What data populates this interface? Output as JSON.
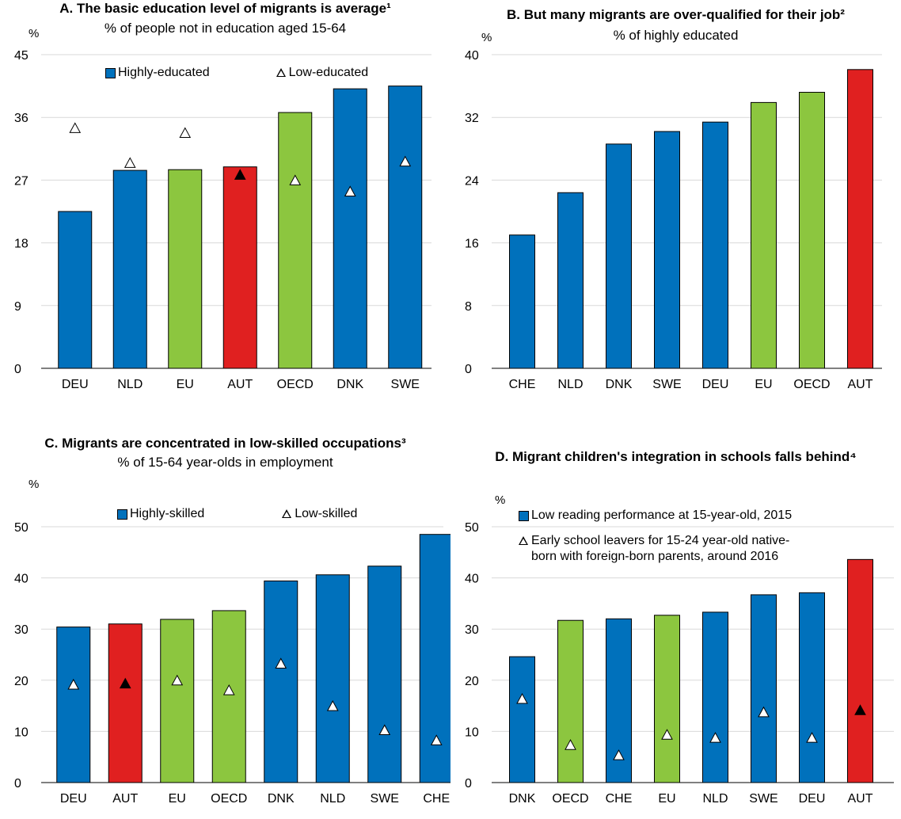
{
  "colors": {
    "blue": "#0071BC",
    "green": "#8CC63F",
    "red": "#E02020",
    "grid": "#D9D9D9"
  },
  "chart_data": [
    {
      "id": "A",
      "type": "bar",
      "title": "A. The basic education level of migrants is average¹",
      "subtitle": "% of people not in education aged 15-64",
      "ylabel": "%",
      "ylim": [
        0,
        45
      ],
      "yticks": [
        0,
        9,
        18,
        27,
        36,
        45
      ],
      "categories": [
        "DEU",
        "NLD",
        "EU",
        "AUT",
        "OECD",
        "DNK",
        "SWE"
      ],
      "bar_colors": [
        "blue",
        "blue",
        "green",
        "red",
        "green",
        "blue",
        "blue"
      ],
      "series": [
        {
          "name": "Highly-educated",
          "kind": "bar",
          "values": [
            22.5,
            28.4,
            28.5,
            28.9,
            36.7,
            40.1,
            40.5
          ]
        },
        {
          "name": "Low-educated",
          "kind": "marker",
          "values": [
            34.5,
            29.5,
            33.8,
            27.8,
            27.0,
            25.4,
            29.7
          ]
        }
      ],
      "grid": true,
      "legend_position": "top"
    },
    {
      "id": "B",
      "type": "bar",
      "title": "B. But many migrants are over-qualified for their job²",
      "subtitle": "% of highly educated",
      "ylabel": "%",
      "ylim": [
        0,
        40
      ],
      "yticks": [
        0,
        8,
        16,
        24,
        32,
        40
      ],
      "categories": [
        "CHE",
        "NLD",
        "DNK",
        "SWE",
        "DEU",
        "EU",
        "OECD",
        "AUT"
      ],
      "bar_colors": [
        "blue",
        "blue",
        "blue",
        "blue",
        "blue",
        "green",
        "green",
        "red"
      ],
      "series": [
        {
          "kind": "bar",
          "values": [
            17.0,
            22.4,
            28.6,
            30.2,
            31.4,
            33.9,
            35.2,
            38.1
          ]
        }
      ],
      "grid": true
    },
    {
      "id": "C",
      "type": "bar",
      "title": "C. Migrants are concentrated in low-skilled occupations³",
      "subtitle": "% of 15-64 year-olds in employment",
      "ylabel": "%",
      "ylim": [
        0,
        50
      ],
      "yticks": [
        0,
        10,
        20,
        30,
        40,
        50
      ],
      "categories": [
        "DEU",
        "AUT",
        "EU",
        "OECD",
        "DNK",
        "NLD",
        "SWE",
        "CHE"
      ],
      "bar_colors": [
        "blue",
        "red",
        "green",
        "green",
        "blue",
        "blue",
        "blue",
        "blue"
      ],
      "series": [
        {
          "name": "Highly-skilled",
          "kind": "bar",
          "values": [
            30.4,
            31.0,
            31.9,
            33.6,
            39.4,
            40.6,
            42.3,
            48.5
          ]
        },
        {
          "name": "Low-skilled",
          "kind": "marker",
          "values": [
            19.2,
            19.4,
            20.0,
            18.1,
            23.3,
            15.0,
            10.3,
            8.3
          ]
        }
      ],
      "grid": true,
      "legend_position": "top"
    },
    {
      "id": "D",
      "type": "bar",
      "title": "D. Migrant children's integration in schools falls behind⁴",
      "ylabel": "%",
      "ylim": [
        0,
        50
      ],
      "yticks": [
        0,
        10,
        20,
        30,
        40,
        50
      ],
      "categories": [
        "DNK",
        "OECD",
        "CHE",
        "EU",
        "NLD",
        "SWE",
        "DEU",
        "AUT"
      ],
      "bar_colors": [
        "blue",
        "green",
        "blue",
        "green",
        "blue",
        "blue",
        "blue",
        "red"
      ],
      "series": [
        {
          "name": "Low reading performance at 15-year-old, 2015",
          "kind": "bar",
          "values": [
            24.6,
            31.7,
            32.0,
            32.7,
            33.3,
            36.7,
            37.1,
            43.6
          ]
        },
        {
          "name": "Early school leavers for 15-24 year-old native-born with foreign-born parents, around 2016",
          "kind": "marker",
          "values": [
            16.4,
            7.4,
            5.4,
            9.4,
            8.8,
            13.8,
            8.8,
            14.2
          ]
        }
      ],
      "grid": true,
      "legend_position": "top-left"
    }
  ]
}
